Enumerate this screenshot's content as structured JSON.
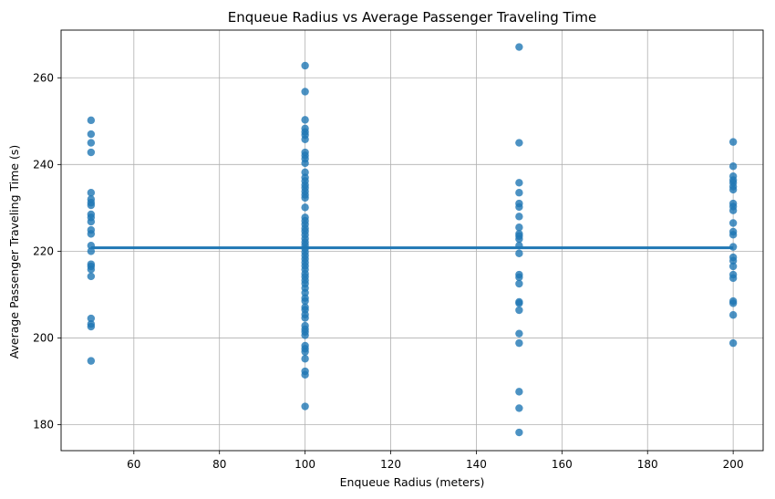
{
  "chart_data": {
    "type": "scatter",
    "title": "Enqueue Radius vs Average Passenger Traveling Time",
    "xlabel": "Enqueue Radius (meters)",
    "ylabel": "Average Passenger Traveling Time (s)",
    "xlim": [
      43,
      207
    ],
    "ylim": [
      174,
      271
    ],
    "xticks": [
      60,
      80,
      100,
      120,
      140,
      160,
      180,
      200
    ],
    "yticks": [
      180,
      200,
      220,
      240,
      260
    ],
    "grid": true,
    "legend": "none",
    "colors": {
      "points": "#1f77b4",
      "line": "#1f77b4",
      "grid": "#b0b0b0"
    },
    "series": [
      {
        "type": "scatter",
        "points": [
          [
            50,
            250.2
          ],
          [
            50,
            247.0
          ],
          [
            50,
            245.0
          ],
          [
            50,
            242.8
          ],
          [
            50,
            233.5
          ],
          [
            50,
            232.0
          ],
          [
            50,
            231.2
          ],
          [
            50,
            230.6
          ],
          [
            50,
            228.5
          ],
          [
            50,
            227.8
          ],
          [
            50,
            226.8
          ],
          [
            50,
            224.9
          ],
          [
            50,
            224.0
          ],
          [
            50,
            221.3
          ],
          [
            50,
            220.0
          ],
          [
            50,
            217.0
          ],
          [
            50,
            216.5
          ],
          [
            50,
            215.8
          ],
          [
            50,
            214.2
          ],
          [
            50,
            204.5
          ],
          [
            50,
            203.2
          ],
          [
            50,
            202.6
          ],
          [
            50,
            194.7
          ],
          [
            100,
            262.8
          ],
          [
            100,
            256.8
          ],
          [
            100,
            250.3
          ],
          [
            100,
            248.3
          ],
          [
            100,
            247.5
          ],
          [
            100,
            246.8
          ],
          [
            100,
            245.8
          ],
          [
            100,
            242.8
          ],
          [
            100,
            242.1
          ],
          [
            100,
            241.3
          ],
          [
            100,
            240.3
          ],
          [
            100,
            238.2
          ],
          [
            100,
            237.0
          ],
          [
            100,
            236.2
          ],
          [
            100,
            235.3
          ],
          [
            100,
            234.6
          ],
          [
            100,
            233.8
          ],
          [
            100,
            233.0
          ],
          [
            100,
            232.3
          ],
          [
            100,
            230.1
          ],
          [
            100,
            227.8
          ],
          [
            100,
            227.0
          ],
          [
            100,
            226.2
          ],
          [
            100,
            225.3
          ],
          [
            100,
            224.6
          ],
          [
            100,
            223.8
          ],
          [
            100,
            222.9
          ],
          [
            100,
            222.1
          ],
          [
            100,
            221.4
          ],
          [
            100,
            220.6
          ],
          [
            100,
            219.8
          ],
          [
            100,
            219.0
          ],
          [
            100,
            218.2
          ],
          [
            100,
            217.4
          ],
          [
            100,
            216.6
          ],
          [
            100,
            215.8
          ],
          [
            100,
            214.8
          ],
          [
            100,
            214.1
          ],
          [
            100,
            213.3
          ],
          [
            100,
            212.5
          ],
          [
            100,
            211.5
          ],
          [
            100,
            210.4
          ],
          [
            100,
            209.2
          ],
          [
            100,
            208.5
          ],
          [
            100,
            207.1
          ],
          [
            100,
            206.5
          ],
          [
            100,
            205.4
          ],
          [
            100,
            204.6
          ],
          [
            100,
            202.8
          ],
          [
            100,
            202.0
          ],
          [
            100,
            201.4
          ],
          [
            100,
            200.6
          ],
          [
            100,
            198.2
          ],
          [
            100,
            197.5
          ],
          [
            100,
            196.8
          ],
          [
            100,
            195.2
          ],
          [
            100,
            192.3
          ],
          [
            100,
            191.5
          ],
          [
            100,
            184.2
          ],
          [
            150,
            267.1
          ],
          [
            150,
            245.0
          ],
          [
            150,
            235.8
          ],
          [
            150,
            233.5
          ],
          [
            150,
            231.0
          ],
          [
            150,
            230.2
          ],
          [
            150,
            228.0
          ],
          [
            150,
            225.5
          ],
          [
            150,
            224.0
          ],
          [
            150,
            223.5
          ],
          [
            150,
            222.8
          ],
          [
            150,
            221.3
          ],
          [
            150,
            219.5
          ],
          [
            150,
            214.6
          ],
          [
            150,
            214.0
          ],
          [
            150,
            212.5
          ],
          [
            150,
            208.3
          ],
          [
            150,
            208.0
          ],
          [
            150,
            206.4
          ],
          [
            150,
            201.0
          ],
          [
            150,
            198.8
          ],
          [
            150,
            187.6
          ],
          [
            150,
            183.8
          ],
          [
            150,
            178.2
          ],
          [
            200,
            245.2
          ],
          [
            200,
            239.6
          ],
          [
            200,
            237.3
          ],
          [
            200,
            236.4
          ],
          [
            200,
            235.8
          ],
          [
            200,
            234.9
          ],
          [
            200,
            234.2
          ],
          [
            200,
            231.0
          ],
          [
            200,
            230.3
          ],
          [
            200,
            229.4
          ],
          [
            200,
            226.5
          ],
          [
            200,
            224.5
          ],
          [
            200,
            223.8
          ],
          [
            200,
            221.0
          ],
          [
            200,
            218.6
          ],
          [
            200,
            217.8
          ],
          [
            200,
            216.5
          ],
          [
            200,
            214.6
          ],
          [
            200,
            213.8
          ],
          [
            200,
            208.5
          ],
          [
            200,
            208.0
          ],
          [
            200,
            205.3
          ],
          [
            200,
            198.8
          ]
        ]
      },
      {
        "type": "line",
        "x": [
          50,
          200
        ],
        "y": [
          220.8,
          220.8
        ]
      }
    ]
  }
}
